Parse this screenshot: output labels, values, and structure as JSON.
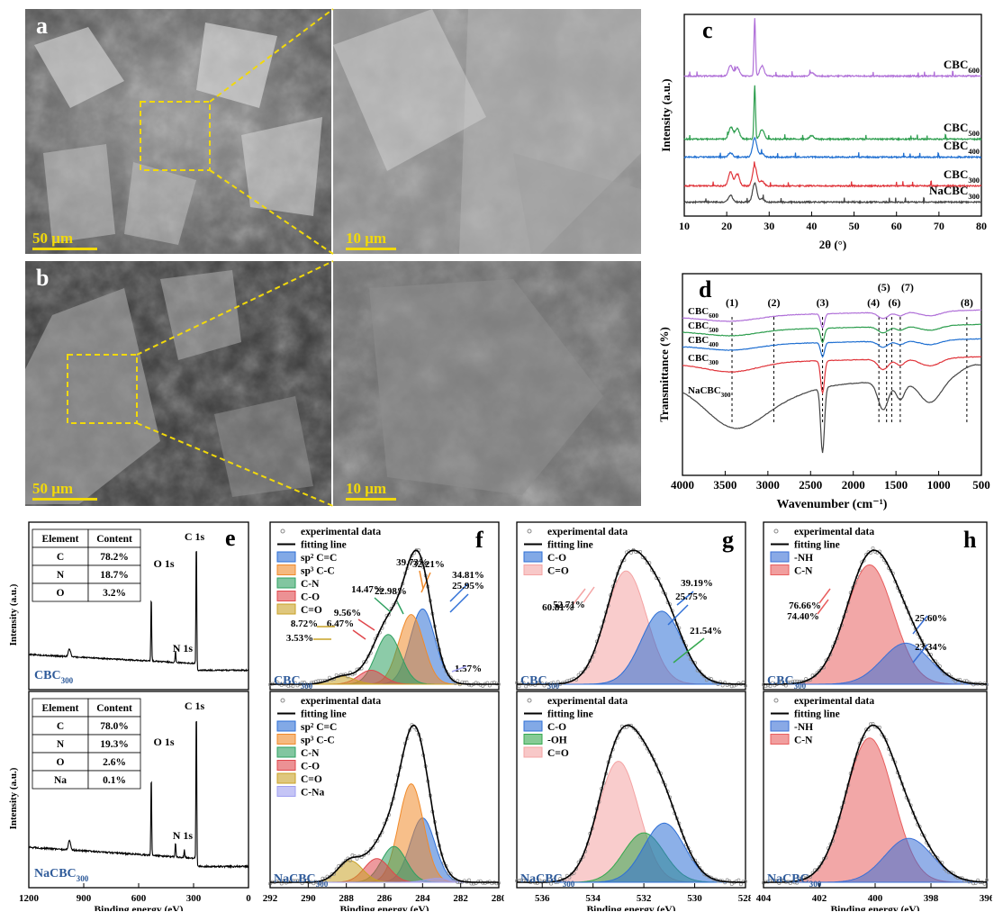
{
  "colors": {
    "purple": "#b070d8",
    "green": "#2e9e4f",
    "blue": "#1f6fd1",
    "red": "#e0343a",
    "gray": "#444444",
    "sp2": "#2e6fd6",
    "sp3": "#f08a2a",
    "cn": "#2ea060",
    "co": "#e0474c",
    "cdo": "#c9a227",
    "cna": "#9f9ff0",
    "oh": "#35a84f",
    "cdo_g": "#f4a3a3",
    "nh": "#3a6fd6",
    "cn_h": "#e85e5e",
    "sem_ref": "#f2d90a"
  },
  "panel_a": {
    "label": "a",
    "scale_left": "50 μm",
    "scale_right": "10 μm"
  },
  "panel_b": {
    "label": "b",
    "scale_left": "50 μm",
    "scale_right": "10 μm"
  },
  "chart_data": [
    {
      "panel": "c",
      "type": "line",
      "xlabel": "2θ (°)",
      "ylabel": "Intensity (a.u.)",
      "xlim": [
        10,
        80
      ],
      "xticks": [
        "10",
        "20",
        "30",
        "40",
        "50",
        "60",
        "70",
        "80"
      ],
      "series": [
        {
          "name": "CBC600",
          "base": "CBC",
          "sub": "600",
          "color": "purple",
          "offset": 4,
          "peaks": [
            [
              20.9,
              0.3
            ],
            [
              22.5,
              0.25
            ],
            [
              26.6,
              1.7
            ],
            [
              28.3,
              0.3
            ],
            [
              40.0,
              0.1
            ]
          ]
        },
        {
          "name": "CBC500",
          "base": "CBC",
          "sub": "500",
          "color": "green",
          "offset": 3,
          "peaks": [
            [
              21,
              0.35
            ],
            [
              22.5,
              0.3
            ],
            [
              26.6,
              1.55
            ],
            [
              28.3,
              0.28
            ],
            [
              40.0,
              0.1
            ]
          ]
        },
        {
          "name": "CBC400",
          "base": "CBC",
          "sub": "400",
          "color": "blue",
          "offset": 2,
          "peaks": [
            [
              20.9,
              0.12
            ],
            [
              26.6,
              0.55
            ],
            [
              28.3,
              0.1
            ]
          ]
        },
        {
          "name": "CBC300",
          "base": "CBC",
          "sub": "300",
          "color": "red",
          "offset": 1,
          "peaks": [
            [
              20.9,
              0.4
            ],
            [
              22.5,
              0.35
            ],
            [
              26.6,
              0.6
            ],
            [
              28.3,
              0.15
            ]
          ]
        },
        {
          "name": "NaCBC300",
          "base": "NaCBC",
          "sub": "300",
          "color": "gray",
          "offset": 0,
          "peaks": [
            [
              20.9,
              0.2
            ],
            [
              26.6,
              0.55
            ],
            [
              28.3,
              0.1
            ]
          ]
        }
      ]
    },
    {
      "panel": "d",
      "type": "line",
      "xlabel": "Wavenumber (cm⁻¹)",
      "ylabel": "Transmittance (%)",
      "xlim": [
        4000,
        500
      ],
      "xticks": [
        "4000",
        "3500",
        "3000",
        "2500",
        "2000",
        "1500",
        "1000",
        "500"
      ],
      "bands": [
        {
          "label": "(1)",
          "x": 3420
        },
        {
          "label": "(2)",
          "x": 2930
        },
        {
          "label": "(3)",
          "x": 2360
        },
        {
          "label": "(4)",
          "x": 1700
        },
        {
          "label": "(5)",
          "x": 1610
        },
        {
          "label": "(6)",
          "x": 1550
        },
        {
          "label": "(7)",
          "x": 1450
        },
        {
          "label": "(8)",
          "x": 670
        }
      ],
      "series": [
        {
          "name": "CBC600",
          "base": "CBC",
          "sub": "600",
          "color": "purple"
        },
        {
          "name": "CBC500",
          "base": "CBC",
          "sub": "500",
          "color": "green"
        },
        {
          "name": "CBC400",
          "base": "CBC",
          "sub": "400",
          "color": "blue"
        },
        {
          "name": "CBC300",
          "base": "CBC",
          "sub": "300",
          "color": "red"
        },
        {
          "name": "NaCBC300",
          "base": "NaCBC",
          "sub": "300",
          "color": "gray"
        }
      ]
    },
    {
      "panel": "e",
      "type": "line",
      "xlabel": "Binding energy (eV)",
      "ylabel": "Intensity (a.u.)",
      "xlim": [
        1200,
        0
      ],
      "xticks": [
        "1200",
        "900",
        "600",
        "300",
        "0"
      ],
      "peak_labels": [
        "C 1s",
        "O 1s",
        "N 1s"
      ],
      "top": {
        "sample_base": "CBC",
        "sample_sub": "300",
        "table": {
          "headers": [
            "Element",
            "Content"
          ],
          "rows": [
            [
              "C",
              "78.2%"
            ],
            [
              "N",
              "18.7%"
            ],
            [
              "O",
              "3.2%"
            ]
          ]
        }
      },
      "bottom": {
        "sample_base": "NaCBC",
        "sample_sub": "300",
        "table": {
          "headers": [
            "Element",
            "Content"
          ],
          "rows": [
            [
              "C",
              "78.0%"
            ],
            [
              "N",
              "19.3%"
            ],
            [
              "O",
              "2.6%"
            ],
            [
              "Na",
              "0.1%"
            ]
          ]
        }
      }
    },
    {
      "panel": "f",
      "type": "area",
      "xlabel": "Binding energy (eV)",
      "xlim": [
        292,
        280
      ],
      "xticks": [
        "292",
        "290",
        "288",
        "286",
        "284",
        "282",
        "280"
      ],
      "top": {
        "sample_base": "CBC",
        "sample_sub": "300",
        "legend": [
          "experimental data",
          "fitting line",
          "sp² C=C",
          "sp³ C-C",
          "C-N",
          "C-O",
          "C=O"
        ],
        "components": [
          {
            "name": "sp2 C=C",
            "color": "sp2",
            "center": 284.0,
            "area_pct": "34.81%"
          },
          {
            "name": "sp3 C-C",
            "color": "sp3",
            "center": 284.6,
            "area_pct": "32.21%"
          },
          {
            "name": "C-N",
            "color": "cn",
            "center": 285.8,
            "area_pct": "22.98%"
          },
          {
            "name": "C-O",
            "color": "co",
            "center": 286.7,
            "area_pct": "6.47%"
          },
          {
            "name": "C=O",
            "color": "cdo",
            "center": 288.2,
            "area_pct": "3.53%"
          }
        ]
      },
      "bottom": {
        "sample_base": "NaCBC",
        "sample_sub": "300",
        "legend": [
          "experimental data",
          "fitting line",
          "sp² C=C",
          "sp³ C-C",
          "C-N",
          "C-O",
          "C=O",
          "C-Na"
        ],
        "components": [
          {
            "name": "sp2 C=C",
            "color": "sp2",
            "center": 284.0,
            "area_pct": "25.95%"
          },
          {
            "name": "sp3 C-C",
            "color": "sp3",
            "center": 284.6,
            "area_pct": "39.73%"
          },
          {
            "name": "C-N",
            "color": "cn",
            "center": 285.5,
            "area_pct": "14.47%"
          },
          {
            "name": "C-O",
            "color": "co",
            "center": 286.4,
            "area_pct": "9.56%"
          },
          {
            "name": "C=O",
            "color": "cdo",
            "center": 287.8,
            "area_pct": "8.72%"
          },
          {
            "name": "C-Na",
            "color": "cna",
            "center": 283.2,
            "area_pct": "1.57%"
          }
        ]
      }
    },
    {
      "panel": "g",
      "type": "area",
      "xlabel": "Binding energy (eV)",
      "xlim": [
        537,
        528
      ],
      "xticks": [
        "536",
        "534",
        "532",
        "530",
        "528"
      ],
      "top": {
        "sample_base": "CBC",
        "sample_sub": "300",
        "legend": [
          "experimental data",
          "fitting line",
          "C-O",
          "C=O"
        ],
        "components": [
          {
            "name": "C=O",
            "color": "cdo_g",
            "center": 532.7,
            "area_pct": "60.81%"
          },
          {
            "name": "C-O",
            "color": "sp2",
            "center": 531.3,
            "area_pct": "39.19%"
          }
        ]
      },
      "bottom": {
        "sample_base": "NaCBC",
        "sample_sub": "300",
        "legend": [
          "experimental data",
          "fitting line",
          "C-O",
          "-OH",
          "C=O"
        ],
        "components": [
          {
            "name": "C=O",
            "color": "cdo_g",
            "center": 533.0,
            "area_pct": "52.71%"
          },
          {
            "name": "-OH",
            "color": "oh",
            "center": 532.0,
            "area_pct": "21.54%"
          },
          {
            "name": "C-O",
            "color": "sp2",
            "center": 531.2,
            "area_pct": "25.75%"
          }
        ]
      }
    },
    {
      "panel": "h",
      "type": "area",
      "xlabel": "Binding energy (eV)",
      "xlim": [
        404,
        396
      ],
      "xticks": [
        "404",
        "402",
        "400",
        "398",
        "396"
      ],
      "top": {
        "sample_base": "CBC",
        "sample_sub": "300",
        "legend": [
          "experimental data",
          "fitting line",
          "-NH",
          "C-N"
        ],
        "components": [
          {
            "name": "C-N",
            "color": "cn_h",
            "center": 400.2,
            "area_pct": "74.40%"
          },
          {
            "name": "-NH",
            "color": "nh",
            "center": 398.9,
            "area_pct": "25.60%"
          }
        ]
      },
      "bottom": {
        "sample_base": "NaCBC",
        "sample_sub": "300",
        "legend": [
          "experimental data",
          "fitting line",
          "-NH",
          "C-N"
        ],
        "components": [
          {
            "name": "C-N",
            "color": "cn_h",
            "center": 400.2,
            "area_pct": "76.66%"
          },
          {
            "name": "-NH",
            "color": "nh",
            "center": 398.8,
            "area_pct": "23.34%"
          }
        ]
      }
    }
  ]
}
